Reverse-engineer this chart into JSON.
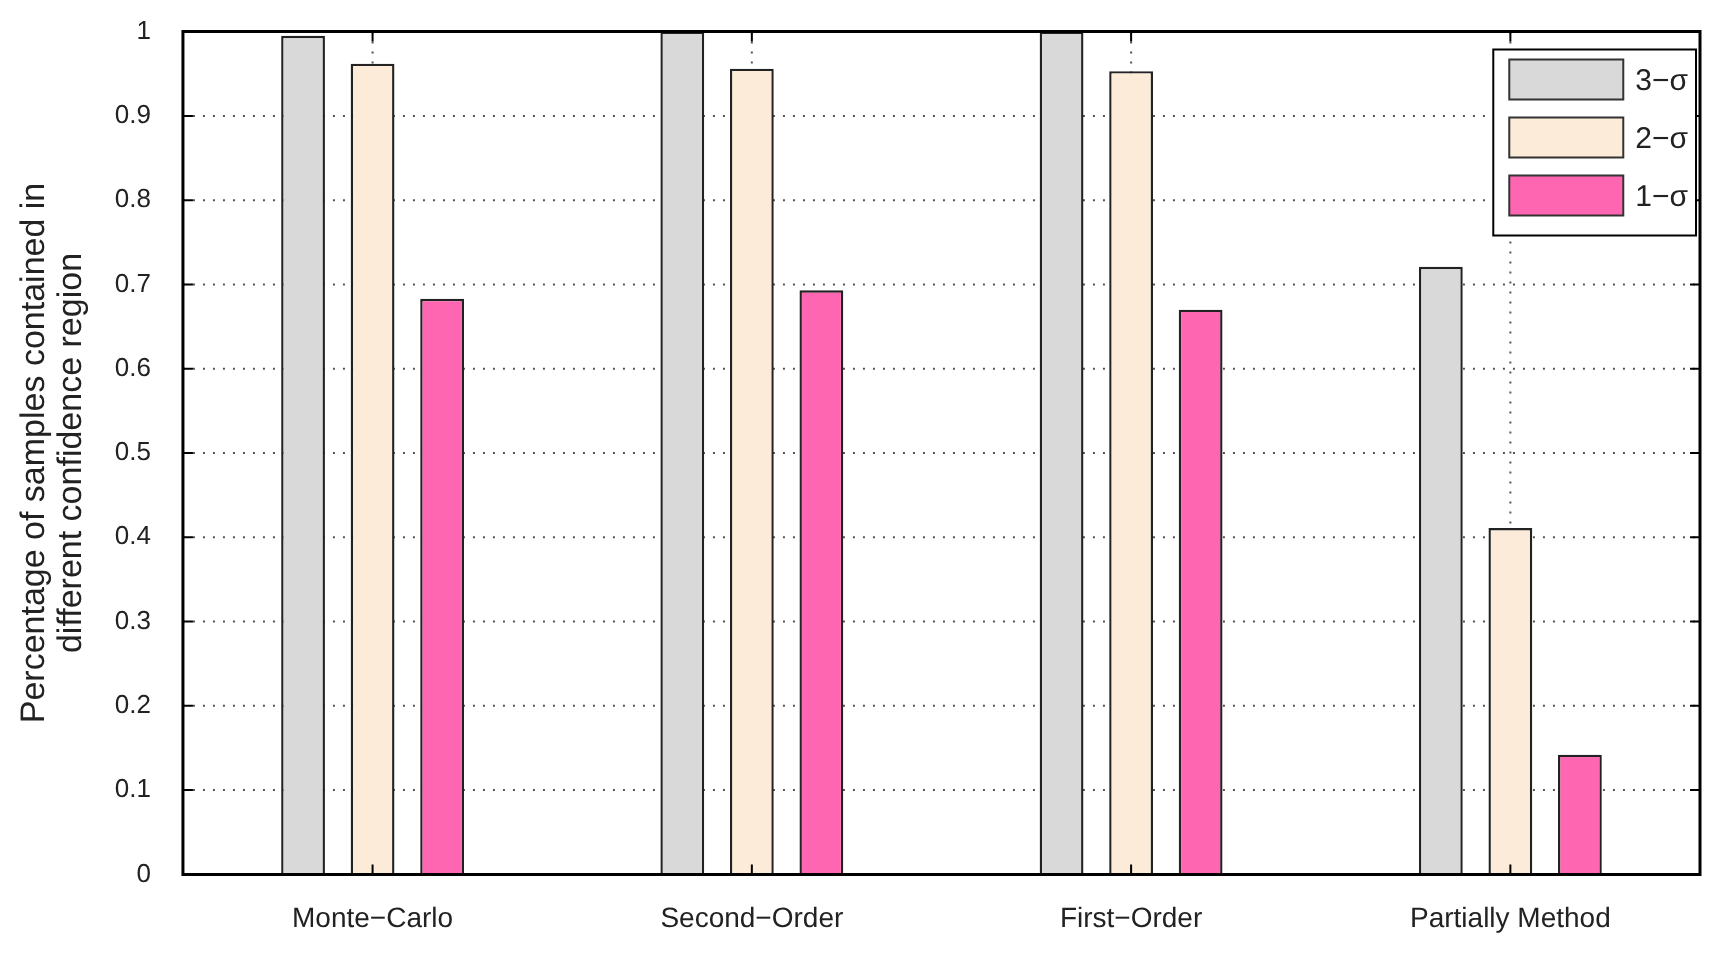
{
  "chart_data": {
    "type": "bar",
    "ylabel": "Percentage of samples contained in\ndifferent confidence region",
    "categories": [
      "Monte−Carlo",
      "Second−Order",
      "First−Order",
      "Partially Method"
    ],
    "series": [
      {
        "name": "3−σ",
        "color": "#d9d9d9",
        "values": [
          0.995,
          1.0,
          1.0,
          0.721
        ]
      },
      {
        "name": "2−σ",
        "color": "#fbebd8",
        "values": [
          0.962,
          0.956,
          0.953,
          0.411
        ]
      },
      {
        "name": "1−σ",
        "color": "#ff66b2",
        "values": [
          0.683,
          0.693,
          0.67,
          0.142
        ]
      }
    ],
    "ylim": [
      0,
      1
    ],
    "yticks": [
      0,
      0.1,
      0.2,
      0.3,
      0.4,
      0.5,
      0.6,
      0.7,
      0.8,
      0.9,
      1
    ],
    "grid": true,
    "legend": "top right"
  }
}
